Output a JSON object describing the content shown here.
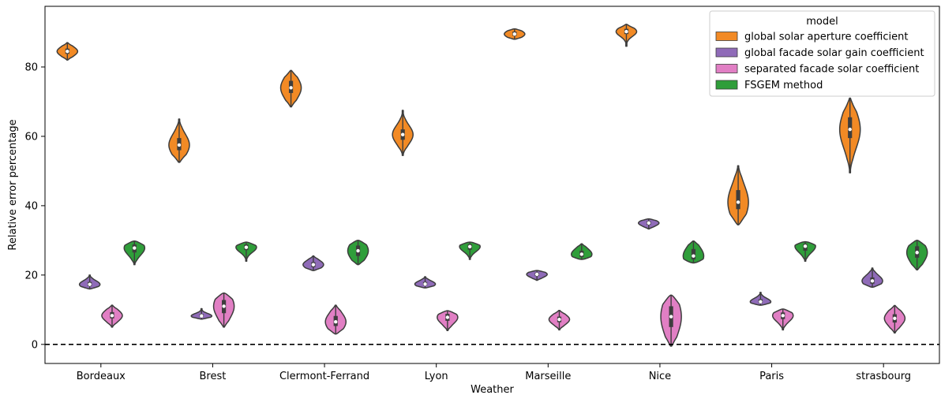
{
  "chart_data": {
    "type": "violin",
    "xlabel": "Weather",
    "ylabel": "Relative error percentage",
    "ylim": [
      -5.5,
      97.5
    ],
    "yticks": [
      0,
      20,
      40,
      60,
      80
    ],
    "reference_line": {
      "y": 0,
      "style": "dashed",
      "color": "#000000"
    },
    "grid": false,
    "legend": {
      "title": "model",
      "placement": "top-right"
    },
    "categories": [
      "Bordeaux",
      "Brest",
      "Clermont-Ferrand",
      "Lyon",
      "Marseille",
      "Nice",
      "Paris",
      "strasbourg"
    ],
    "series": [
      {
        "name": "global solar aperture coefficient",
        "color": "#f28a25",
        "distributions": [
          {
            "min": 82.0,
            "q1": 83.8,
            "median": 84.5,
            "q3": 85.3,
            "max": 87.0
          },
          {
            "min": 52.5,
            "q1": 56.0,
            "median": 57.5,
            "q3": 59.5,
            "max": 65.0
          },
          {
            "min": 68.5,
            "q1": 72.5,
            "median": 74.0,
            "q3": 76.0,
            "max": 79.0
          },
          {
            "min": 54.5,
            "q1": 59.0,
            "median": 60.5,
            "q3": 62.0,
            "max": 67.5
          },
          {
            "min": 88.0,
            "q1": 89.0,
            "median": 89.5,
            "q3": 90.2,
            "max": 91.0
          },
          {
            "min": 86.0,
            "q1": 89.5,
            "median": 90.2,
            "q3": 91.0,
            "max": 92.3
          },
          {
            "min": 34.5,
            "q1": 39.0,
            "median": 41.0,
            "q3": 44.5,
            "max": 51.5
          },
          {
            "min": 49.5,
            "q1": 59.5,
            "median": 62.0,
            "q3": 65.5,
            "max": 71.0
          }
        ]
      },
      {
        "name": "global facade solar gain coefficient",
        "color": "#8f6bb8",
        "distributions": [
          {
            "min": 16.0,
            "q1": 16.8,
            "median": 17.3,
            "q3": 18.0,
            "max": 20.0
          },
          {
            "min": 7.3,
            "q1": 7.9,
            "median": 8.2,
            "q3": 8.7,
            "max": 10.3
          },
          {
            "min": 21.3,
            "q1": 22.3,
            "median": 23.0,
            "q3": 23.7,
            "max": 25.5
          },
          {
            "min": 16.3,
            "q1": 17.0,
            "median": 17.4,
            "q3": 18.0,
            "max": 19.5
          },
          {
            "min": 18.5,
            "q1": 19.7,
            "median": 20.2,
            "q3": 20.7,
            "max": 21.3
          },
          {
            "min": 33.3,
            "q1": 34.5,
            "median": 35.0,
            "q3": 35.5,
            "max": 36.2
          },
          {
            "min": 11.3,
            "q1": 11.9,
            "median": 12.3,
            "q3": 13.0,
            "max": 15.0
          },
          {
            "min": 16.5,
            "q1": 17.5,
            "median": 18.3,
            "q3": 19.3,
            "max": 22.0
          }
        ]
      },
      {
        "name": "separated facade solar coefficient",
        "color": "#e17fc4",
        "distributions": [
          {
            "min": 5.0,
            "q1": 7.5,
            "median": 8.3,
            "q3": 9.3,
            "max": 11.3
          },
          {
            "min": 5.0,
            "q1": 9.0,
            "median": 11.0,
            "q3": 12.8,
            "max": 14.8
          },
          {
            "min": 3.0,
            "q1": 5.3,
            "median": 6.5,
            "q3": 8.2,
            "max": 11.3
          },
          {
            "min": 4.0,
            "q1": 6.8,
            "median": 7.8,
            "q3": 8.8,
            "max": 9.7
          },
          {
            "min": 4.2,
            "q1": 6.4,
            "median": 7.2,
            "q3": 8.0,
            "max": 9.8
          },
          {
            "min": -0.5,
            "q1": 5.0,
            "median": 8.0,
            "q3": 11.0,
            "max": 14.2
          },
          {
            "min": 4.2,
            "q1": 7.3,
            "median": 8.3,
            "q3": 9.2,
            "max": 10.2
          },
          {
            "min": 3.3,
            "q1": 6.3,
            "median": 7.5,
            "q3": 8.7,
            "max": 11.2
          }
        ]
      },
      {
        "name": "FSGEM method",
        "color": "#2f9e3a",
        "distributions": [
          {
            "min": 23.0,
            "q1": 26.5,
            "median": 27.8,
            "q3": 28.8,
            "max": 29.8
          },
          {
            "min": 24.0,
            "q1": 27.2,
            "median": 28.0,
            "q3": 28.8,
            "max": 29.5
          },
          {
            "min": 23.0,
            "q1": 25.5,
            "median": 27.0,
            "q3": 28.5,
            "max": 30.0
          },
          {
            "min": 24.5,
            "q1": 27.3,
            "median": 28.2,
            "q3": 28.9,
            "max": 29.5
          },
          {
            "min": 24.5,
            "q1": 25.2,
            "median": 26.0,
            "q3": 27.0,
            "max": 29.0
          },
          {
            "min": 23.5,
            "q1": 24.5,
            "median": 25.5,
            "q3": 27.5,
            "max": 29.8
          },
          {
            "min": 24.0,
            "q1": 27.0,
            "median": 28.3,
            "q3": 29.0,
            "max": 29.6
          },
          {
            "min": 21.5,
            "q1": 25.0,
            "median": 26.5,
            "q3": 28.3,
            "max": 30.0
          }
        ]
      }
    ]
  }
}
